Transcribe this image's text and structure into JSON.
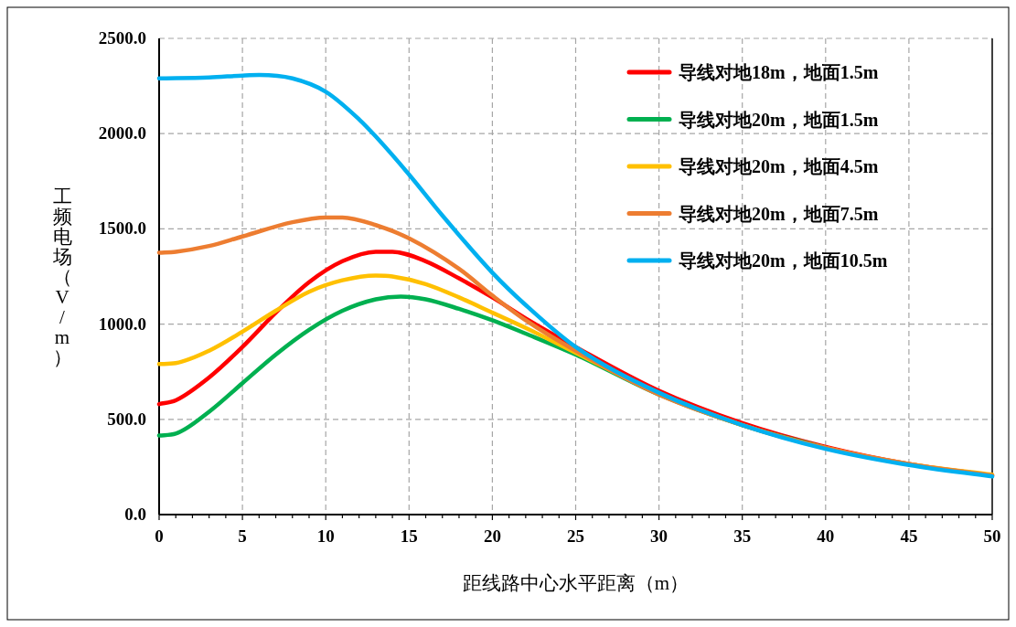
{
  "chart_data": {
    "type": "line",
    "xlabel": "距线路中心水平距离（m）",
    "ylabel": "工频电场（V/m）",
    "xlim": [
      0,
      50
    ],
    "ylim": [
      0,
      2500
    ],
    "xticks": [
      0,
      {
        "value": 1,
        "label": null
      },
      {
        "value": 2,
        "label": null
      },
      {
        "value": 3,
        "label": null
      },
      {
        "value": 4,
        "label": null
      },
      5,
      {
        "value": 6,
        "label": null
      },
      {
        "value": 7,
        "label": null
      },
      {
        "value": 8,
        "label": null
      },
      {
        "value": 9,
        "label": null
      },
      10,
      {
        "value": 11,
        "label": null
      },
      {
        "value": 12,
        "label": null
      },
      {
        "value": 13,
        "label": null
      },
      {
        "value": 14,
        "label": null
      },
      15,
      {
        "value": 16,
        "label": null
      },
      {
        "value": 17,
        "label": null
      },
      {
        "value": 18,
        "label": null
      },
      {
        "value": 19,
        "label": null
      },
      20,
      {
        "value": 21,
        "label": null
      },
      {
        "value": 22,
        "label": null
      },
      {
        "value": 23,
        "label": null
      },
      {
        "value": 24,
        "label": null
      },
      25,
      {
        "value": 26,
        "label": null
      },
      {
        "value": 27,
        "label": null
      },
      {
        "value": 28,
        "label": null
      },
      {
        "value": 29,
        "label": null
      },
      30,
      {
        "value": 31,
        "label": null
      },
      {
        "value": 32,
        "label": null
      },
      {
        "value": 33,
        "label": null
      },
      {
        "value": 34,
        "label": null
      },
      35,
      {
        "value": 36,
        "label": null
      },
      {
        "value": 37,
        "label": null
      },
      {
        "value": 38,
        "label": null
      },
      {
        "value": 39,
        "label": null
      },
      40,
      {
        "value": 41,
        "label": null
      },
      {
        "value": 42,
        "label": null
      },
      {
        "value": 43,
        "label": null
      },
      {
        "value": 44,
        "label": null
      },
      45,
      {
        "value": 46,
        "label": null
      },
      {
        "value": 47,
        "label": null
      },
      {
        "value": 48,
        "label": null
      },
      {
        "value": 49,
        "label": null
      },
      50
    ],
    "yticks": [
      {
        "value": 0,
        "label": "0.0"
      },
      {
        "value": 500,
        "label": "500.0"
      },
      {
        "value": 1000,
        "label": "1000.0"
      },
      {
        "value": 1500,
        "label": "1500.0"
      },
      {
        "value": 2000,
        "label": "2000.0"
      },
      {
        "value": 2500,
        "label": "2500.0"
      }
    ],
    "grid": true,
    "legend": "top right",
    "marker": "none",
    "line_style": "solid",
    "series": [
      {
        "name": "导线对地18m，地面1.5m",
        "color": "#ff0000",
        "x": [
          0,
          1,
          3,
          5,
          7,
          9,
          11,
          13,
          14,
          16,
          18,
          20,
          22,
          25,
          30,
          35,
          40,
          45,
          50
        ],
        "values": [
          580,
          600,
          720,
          880,
          1060,
          1220,
          1330,
          1380,
          1380,
          1330,
          1240,
          1140,
          1030,
          880,
          650,
          480,
          355,
          265,
          205
        ]
      },
      {
        "name": "导线对地20m，地面1.5m",
        "color": "#00b050",
        "x": [
          0,
          1,
          3,
          5,
          7,
          9,
          11,
          13,
          14.5,
          16,
          18,
          20,
          22,
          25,
          30,
          35,
          40
        ],
        "values": [
          415,
          425,
          540,
          690,
          840,
          970,
          1070,
          1130,
          1145,
          1130,
          1080,
          1020,
          950,
          840,
          630,
          470,
          350
        ]
      },
      {
        "name": "导线对地20m，地面4.5m",
        "color": "#ffc000",
        "x": [
          0,
          1,
          3,
          5,
          7,
          9,
          11,
          13,
          14,
          16,
          18,
          20,
          22,
          25,
          30,
          35,
          40,
          45,
          50
        ],
        "values": [
          790,
          795,
          860,
          960,
          1070,
          1170,
          1230,
          1255,
          1250,
          1210,
          1140,
          1060,
          980,
          850,
          635,
          470,
          350,
          265,
          210
        ]
      },
      {
        "name": "导线对地20m，地面7.5m",
        "color": "#ed7d31",
        "x": [
          0,
          1,
          3,
          5,
          8,
          10,
          11,
          13,
          15,
          18,
          20,
          22,
          25,
          30,
          35,
          40,
          45,
          50
        ],
        "values": [
          1375,
          1380,
          1410,
          1460,
          1535,
          1560,
          1560,
          1520,
          1450,
          1290,
          1150,
          1020,
          860,
          630,
          470,
          350,
          265,
          205
        ]
      },
      {
        "name": "导线对地20m，地面10.5m",
        "color": "#00b0f0",
        "x": [
          0,
          3,
          5,
          6,
          8,
          10,
          12,
          13,
          15,
          17,
          20,
          22,
          25,
          30,
          35,
          40,
          45,
          50
        ],
        "values": [
          2290,
          2295,
          2305,
          2308,
          2290,
          2220,
          2075,
          1985,
          1785,
          1570,
          1270,
          1100,
          880,
          640,
          470,
          345,
          260,
          200
        ]
      }
    ]
  }
}
